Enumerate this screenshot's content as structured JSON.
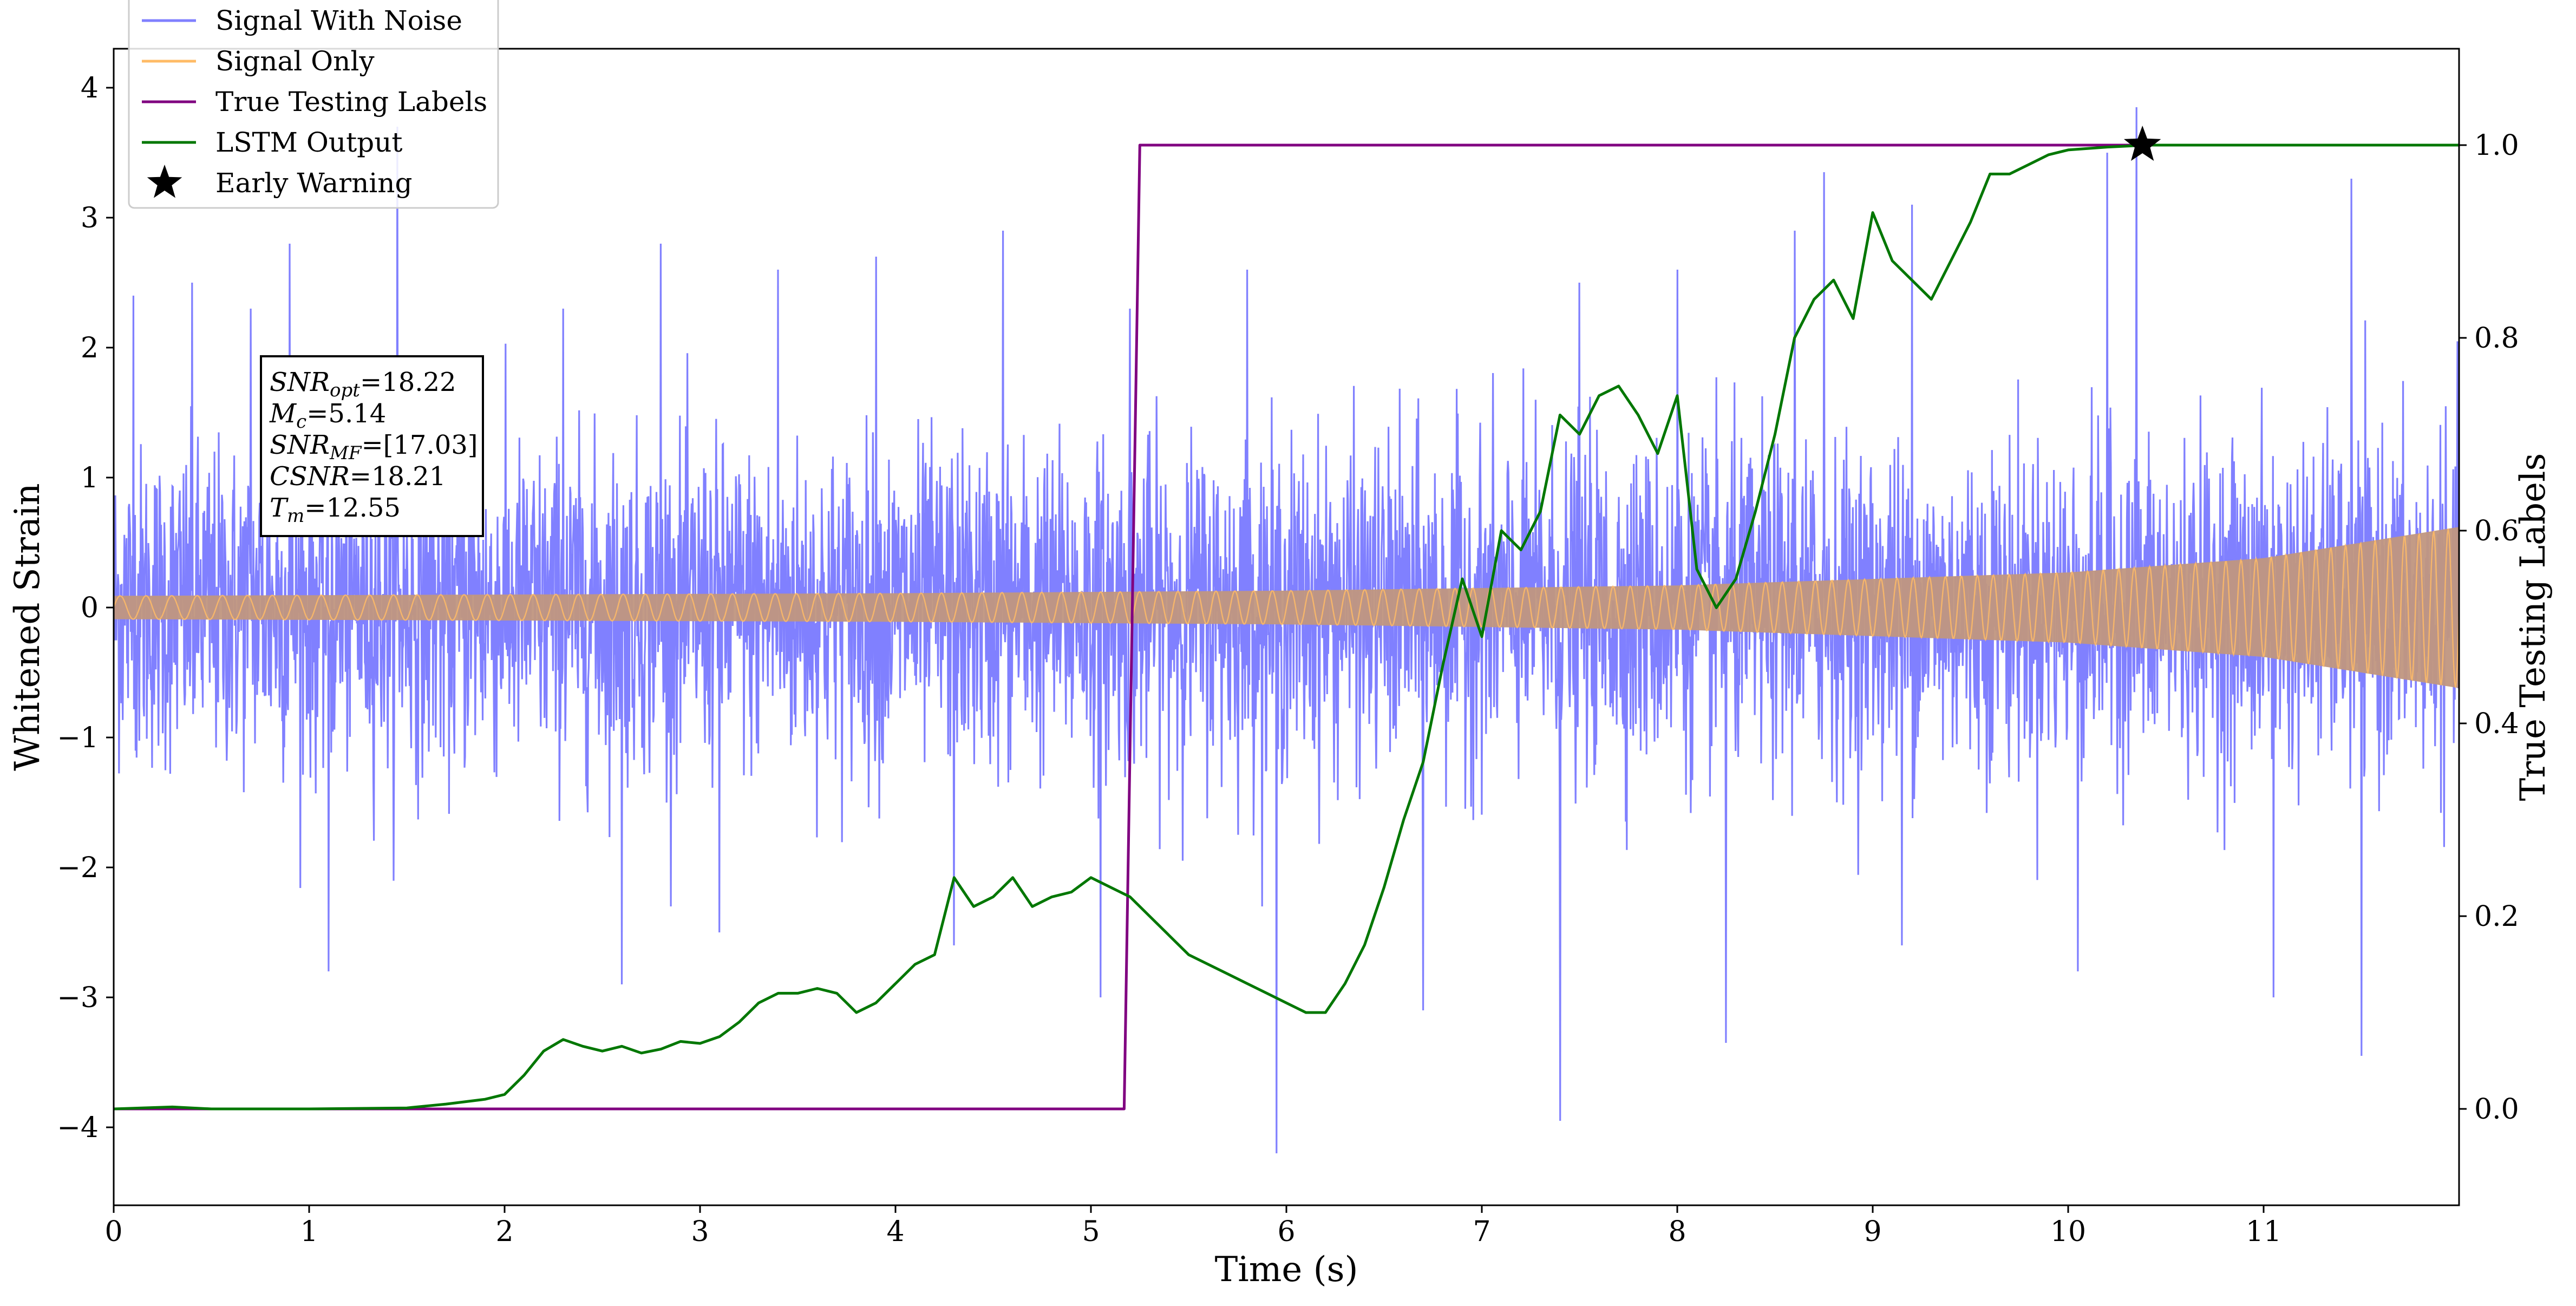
{
  "chart_data": {
    "type": "line",
    "xlabel": "Time (s)",
    "ylabel": "Whitened Strain",
    "y2label": "True Testing Labels",
    "xlim": [
      0,
      12
    ],
    "ylim": [
      -4.6,
      4.3
    ],
    "y2lim": [
      -0.1,
      1.1
    ],
    "xticks": [
      0,
      1,
      2,
      3,
      4,
      5,
      6,
      7,
      8,
      9,
      10,
      11
    ],
    "yticks": [
      -4,
      -3,
      -2,
      -1,
      0,
      1,
      2,
      3,
      4
    ],
    "yticklabels": [
      "−4",
      "−3",
      "−2",
      "−1",
      "0",
      "1",
      "2",
      "3",
      "4"
    ],
    "y2ticks": [
      0.0,
      0.2,
      0.4,
      0.6,
      0.8,
      1.0
    ],
    "y2ticklabels": [
      "0.0",
      "0.2",
      "0.4",
      "0.6",
      "0.8",
      "1.0"
    ],
    "grid": false,
    "legend_position": "top-left",
    "series": [
      {
        "name": "Signal With Noise",
        "color": "#8080ff",
        "axis": "left",
        "description_values": {
          "center": 0,
          "typical_band": [
            -1.5,
            1.5
          ],
          "spike_peaks": [
            [
              0.1,
              2.4
            ],
            [
              0.4,
              2.5
            ],
            [
              0.7,
              2.3
            ],
            [
              0.9,
              2.8
            ],
            [
              1.45,
              3.7
            ],
            [
              2.3,
              2.3
            ],
            [
              2.8,
              2.8
            ],
            [
              3.4,
              2.6
            ],
            [
              3.9,
              2.7
            ],
            [
              4.55,
              2.9
            ],
            [
              5.2,
              2.3
            ],
            [
              5.8,
              2.6
            ],
            [
              6.7,
              2.0
            ],
            [
              7.5,
              2.5
            ],
            [
              8.0,
              2.6
            ],
            [
              8.6,
              2.9
            ],
            [
              8.75,
              3.35
            ],
            [
              9.2,
              3.1
            ],
            [
              10.2,
              3.5
            ],
            [
              10.35,
              3.85
            ],
            [
              11.45,
              3.3
            ],
            [
              1.1,
              -2.8
            ],
            [
              2.6,
              -2.9
            ],
            [
              3.1,
              -2.5
            ],
            [
              4.3,
              -2.6
            ],
            [
              5.05,
              -3.0
            ],
            [
              5.95,
              -4.2
            ],
            [
              6.7,
              -3.1
            ],
            [
              7.4,
              -3.95
            ],
            [
              8.25,
              -3.35
            ],
            [
              9.15,
              -2.6
            ],
            [
              10.05,
              -2.8
            ],
            [
              11.05,
              -3.0
            ],
            [
              11.5,
              -3.45
            ]
          ]
        }
      },
      {
        "name": "Signal Only",
        "color": "#ffbb66",
        "axis": "left",
        "description_values": {
          "envelope_x": [
            0,
            2,
            4,
            6,
            8,
            10,
            11,
            12
          ],
          "envelope_amplitude": [
            0.09,
            0.1,
            0.11,
            0.13,
            0.17,
            0.27,
            0.38,
            0.62
          ]
        }
      },
      {
        "name": "True Testing Labels",
        "color": "#800080",
        "axis": "right",
        "x": [
          0,
          5.17,
          5.25,
          12
        ],
        "y": [
          0,
          0,
          1,
          1
        ]
      },
      {
        "name": "LSTM Output",
        "color": "#007700",
        "axis": "right",
        "x": [
          0,
          0.3,
          0.5,
          1.0,
          1.5,
          1.7,
          1.9,
          2.0,
          2.1,
          2.2,
          2.3,
          2.4,
          2.5,
          2.6,
          2.7,
          2.8,
          2.9,
          3.0,
          3.1,
          3.2,
          3.3,
          3.4,
          3.5,
          3.6,
          3.7,
          3.8,
          3.9,
          4.0,
          4.1,
          4.2,
          4.3,
          4.4,
          4.5,
          4.6,
          4.7,
          4.8,
          4.9,
          5.0,
          5.1,
          5.2,
          5.3,
          5.4,
          5.5,
          5.6,
          5.7,
          5.8,
          5.9,
          6.0,
          6.1,
          6.2,
          6.3,
          6.4,
          6.5,
          6.6,
          6.7,
          6.8,
          6.9,
          7.0,
          7.1,
          7.2,
          7.3,
          7.4,
          7.5,
          7.6,
          7.7,
          7.8,
          7.9,
          8.0,
          8.1,
          8.2,
          8.3,
          8.4,
          8.5,
          8.6,
          8.7,
          8.8,
          8.9,
          9.0,
          9.1,
          9.2,
          9.3,
          9.4,
          9.5,
          9.6,
          9.7,
          9.8,
          9.9,
          10.0,
          10.2,
          10.4,
          10.6,
          11.0,
          12.0
        ],
        "y": [
          0.0,
          0.002,
          0.0,
          0.0,
          0.001,
          0.005,
          0.01,
          0.015,
          0.035,
          0.06,
          0.072,
          0.065,
          0.06,
          0.065,
          0.058,
          0.062,
          0.07,
          0.068,
          0.075,
          0.09,
          0.11,
          0.12,
          0.12,
          0.125,
          0.12,
          0.1,
          0.11,
          0.13,
          0.15,
          0.16,
          0.24,
          0.21,
          0.22,
          0.24,
          0.21,
          0.22,
          0.225,
          0.24,
          0.23,
          0.22,
          0.2,
          0.18,
          0.16,
          0.15,
          0.14,
          0.13,
          0.12,
          0.11,
          0.1,
          0.1,
          0.13,
          0.17,
          0.23,
          0.3,
          0.36,
          0.46,
          0.55,
          0.49,
          0.6,
          0.58,
          0.62,
          0.72,
          0.7,
          0.74,
          0.75,
          0.72,
          0.68,
          0.74,
          0.56,
          0.52,
          0.55,
          0.62,
          0.7,
          0.8,
          0.84,
          0.86,
          0.82,
          0.93,
          0.88,
          0.86,
          0.84,
          0.88,
          0.92,
          0.97,
          0.97,
          0.98,
          0.99,
          0.995,
          0.998,
          1.0,
          1.0,
          1.0,
          1.0
        ]
      }
    ],
    "early_warning": {
      "name": "Early Warning",
      "x": 10.38,
      "y2": 1.0,
      "marker": "star",
      "color": "#000000"
    },
    "legend_entries": [
      {
        "label": "Signal With Noise",
        "color": "#8080ff",
        "kind": "line"
      },
      {
        "label": "Signal Only",
        "color": "#ffbb66",
        "kind": "line"
      },
      {
        "label": "True Testing Labels",
        "color": "#800080",
        "kind": "line"
      },
      {
        "label": "LSTM Output",
        "color": "#007700",
        "kind": "line"
      },
      {
        "label": "Early Warning",
        "color": "#000000",
        "kind": "star"
      }
    ],
    "annotation": {
      "position": "upper-left",
      "lines": [
        {
          "main": "SNR",
          "sub": "opt",
          "value": "=18.22"
        },
        {
          "main": "M",
          "sub": "c",
          "value": "=5.14"
        },
        {
          "main": "SNR",
          "sub": "MF",
          "value": "=[17.03]"
        },
        {
          "main": "CSNR",
          "sub": "",
          "value": "=18.21"
        },
        {
          "main": "T",
          "sub": "m",
          "value": "=12.55"
        }
      ]
    }
  }
}
